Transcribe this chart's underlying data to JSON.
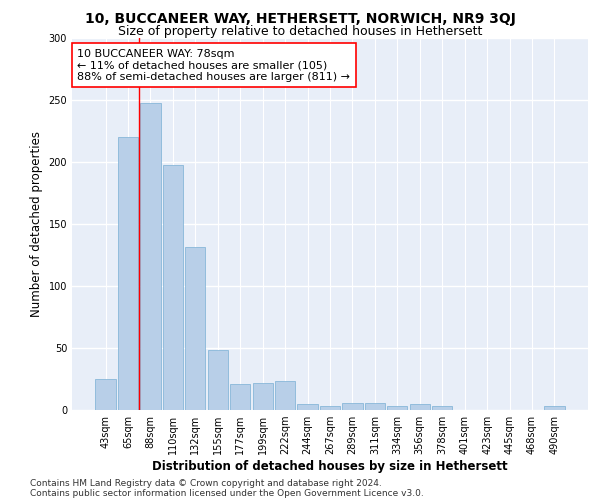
{
  "title": "10, BUCCANEER WAY, HETHERSETT, NORWICH, NR9 3QJ",
  "subtitle": "Size of property relative to detached houses in Hethersett",
  "xlabel": "Distribution of detached houses by size in Hethersett",
  "ylabel": "Number of detached properties",
  "bar_color": "#b8cfe8",
  "bar_edge_color": "#7aafd4",
  "bg_color": "#e8eef8",
  "grid_color": "#ffffff",
  "categories": [
    "43sqm",
    "65sqm",
    "88sqm",
    "110sqm",
    "132sqm",
    "155sqm",
    "177sqm",
    "199sqm",
    "222sqm",
    "244sqm",
    "267sqm",
    "289sqm",
    "311sqm",
    "334sqm",
    "356sqm",
    "378sqm",
    "401sqm",
    "423sqm",
    "445sqm",
    "468sqm",
    "490sqm"
  ],
  "values": [
    25,
    220,
    247,
    197,
    131,
    48,
    21,
    22,
    23,
    5,
    3,
    6,
    6,
    3,
    5,
    3,
    0,
    0,
    0,
    0,
    3
  ],
  "annotation_text": "10 BUCCANEER WAY: 78sqm\n← 11% of detached houses are smaller (105)\n88% of semi-detached houses are larger (811) →",
  "ylim": [
    0,
    300
  ],
  "yticks": [
    0,
    50,
    100,
    150,
    200,
    250,
    300
  ],
  "footer_line1": "Contains HM Land Registry data © Crown copyright and database right 2024.",
  "footer_line2": "Contains public sector information licensed under the Open Government Licence v3.0.",
  "title_fontsize": 10,
  "subtitle_fontsize": 9,
  "axis_label_fontsize": 8.5,
  "tick_fontsize": 7,
  "annotation_fontsize": 8,
  "footer_fontsize": 6.5
}
